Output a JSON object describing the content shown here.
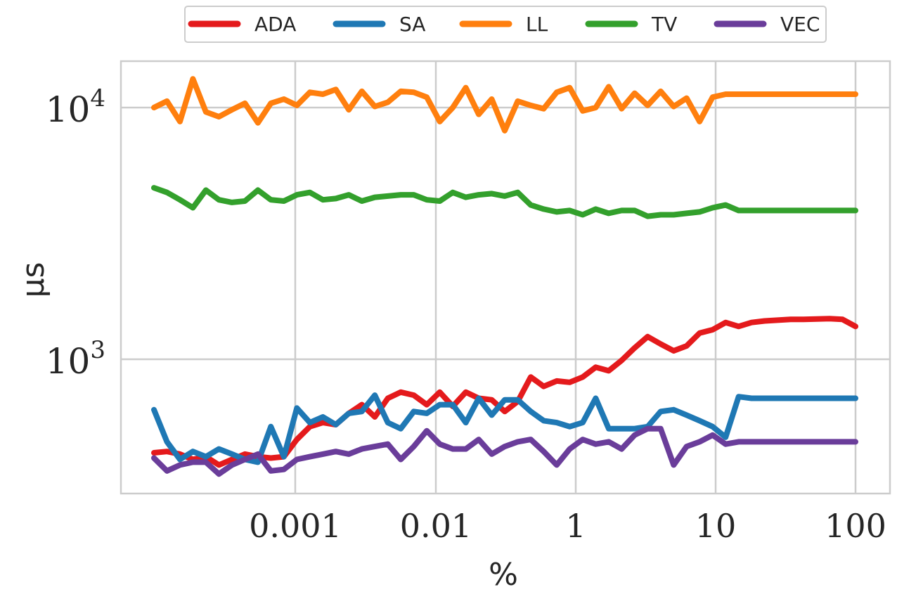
{
  "chart_data": {
    "type": "line",
    "xlabel": "%",
    "ylabel": "μs",
    "x_scale": "log",
    "y_scale": "log",
    "x_ticks": [
      "0.001",
      "0.01",
      "1",
      "10",
      "100"
    ],
    "y_ticks": [
      {
        "base": "10",
        "exp": "4",
        "value": 10000
      },
      {
        "base": "10",
        "exp": "3",
        "value": 1000
      }
    ],
    "grid": true,
    "legend_position": "top-center",
    "x": [
      0.0001,
      0.0002,
      0.0003,
      0.0004,
      0.0005,
      0.0006,
      0.0007,
      0.0008,
      0.0009,
      0.001,
      0.002,
      0.003,
      0.004,
      0.005,
      0.006,
      0.007,
      0.008,
      0.009,
      0.01,
      0.02,
      0.03,
      0.04,
      0.05,
      0.06,
      0.07,
      0.08,
      0.09,
      0.1,
      0.2,
      0.3,
      0.4,
      0.5,
      0.6,
      0.7,
      0.8,
      0.9,
      1,
      2,
      3,
      4,
      5,
      6,
      7,
      8,
      9,
      10,
      20,
      30,
      40,
      50,
      60,
      70,
      80,
      90,
      100
    ],
    "series": [
      {
        "name": "ADA",
        "color": "#e41a1c",
        "values": [
          425,
          430,
          420,
          400,
          410,
          380,
          400,
          420,
          410,
          405,
          410,
          480,
          540,
          560,
          550,
          610,
          660,
          590,
          700,
          740,
          720,
          660,
          740,
          650,
          740,
          700,
          690,
          620,
          680,
          850,
          780,
          820,
          810,
          850,
          930,
          900,
          990,
          1110,
          1230,
          1150,
          1080,
          1130,
          1270,
          1310,
          1400,
          1350,
          1400,
          1420,
          1430,
          1440,
          1440,
          1445,
          1450,
          1440,
          1350
        ]
      },
      {
        "name": "SA",
        "color": "#1f78b4",
        "values": [
          630,
          470,
          400,
          430,
          410,
          440,
          420,
          400,
          390,
          540,
          410,
          640,
          560,
          590,
          550,
          610,
          620,
          720,
          560,
          530,
          620,
          610,
          660,
          660,
          560,
          700,
          600,
          690,
          690,
          620,
          570,
          560,
          540,
          560,
          700,
          530,
          530,
          530,
          540,
          620,
          630,
          600,
          570,
          540,
          490,
          710,
          700,
          700,
          700,
          700,
          700,
          700,
          700,
          700,
          700
        ]
      },
      {
        "name": "LL",
        "color": "#ff7f0e",
        "values": [
          10000,
          10600,
          8800,
          13000,
          9600,
          9200,
          9800,
          10400,
          8700,
          10400,
          10800,
          10200,
          11500,
          11300,
          11800,
          9800,
          11600,
          10100,
          10500,
          11600,
          11500,
          11000,
          8800,
          10000,
          12000,
          9400,
          10800,
          8100,
          10600,
          10200,
          9900,
          11500,
          12000,
          9700,
          10000,
          12100,
          9900,
          11400,
          10200,
          11600,
          10100,
          10900,
          8800,
          11000,
          11300,
          11300,
          11300,
          11300,
          11300,
          11300,
          11300,
          11300,
          11300,
          11300,
          11300
        ]
      },
      {
        "name": "TV",
        "color": "#33a02c",
        "values": [
          4800,
          4600,
          4300,
          4000,
          4700,
          4300,
          4200,
          4250,
          4700,
          4300,
          4250,
          4500,
          4600,
          4300,
          4350,
          4500,
          4250,
          4400,
          4450,
          4500,
          4500,
          4300,
          4250,
          4600,
          4400,
          4500,
          4550,
          4450,
          4600,
          4100,
          3950,
          3850,
          3900,
          3750,
          3950,
          3800,
          3900,
          3900,
          3700,
          3750,
          3750,
          3800,
          3850,
          4000,
          4100,
          3900,
          3900,
          3900,
          3900,
          3900,
          3900,
          3900,
          3900,
          3900,
          3900
        ]
      },
      {
        "name": "VEC",
        "color": "#6a3d9a",
        "values": [
          405,
          360,
          380,
          390,
          390,
          350,
          380,
          400,
          420,
          360,
          365,
          400,
          410,
          420,
          430,
          420,
          440,
          450,
          460,
          400,
          450,
          520,
          460,
          440,
          440,
          480,
          420,
          450,
          470,
          480,
          430,
          380,
          440,
          480,
          460,
          470,
          440,
          500,
          530,
          530,
          380,
          450,
          470,
          500,
          460,
          470,
          470,
          470,
          470,
          470,
          470,
          470,
          470,
          470,
          470
        ]
      }
    ]
  }
}
